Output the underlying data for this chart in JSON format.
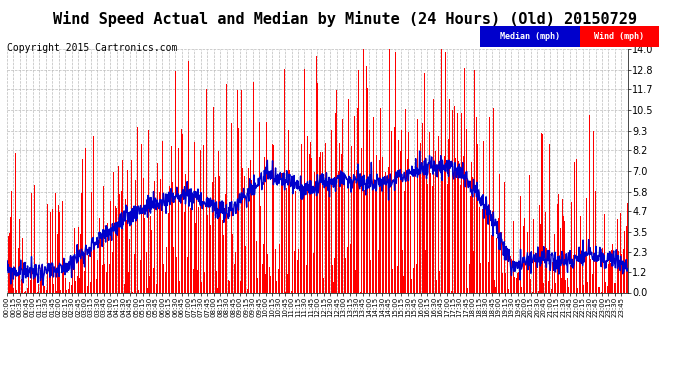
{
  "title": "Wind Speed Actual and Median by Minute (24 Hours) (Old) 20150729",
  "copyright": "Copyright 2015 Cartronics.com",
  "yticks": [
    0.0,
    1.2,
    2.3,
    3.5,
    4.7,
    5.8,
    7.0,
    8.2,
    9.3,
    10.5,
    11.7,
    12.8,
    14.0
  ],
  "ylim": [
    0,
    14.0
  ],
  "bg_color": "#ffffff",
  "grid_color": "#bbbbbb",
  "wind_color": "#ff0000",
  "median_color": "#0000cc",
  "title_fontsize": 11,
  "copyright_fontsize": 7,
  "legend_median_bg": "#0000cc",
  "legend_wind_bg": "#ff0000",
  "n_minutes": 1440
}
